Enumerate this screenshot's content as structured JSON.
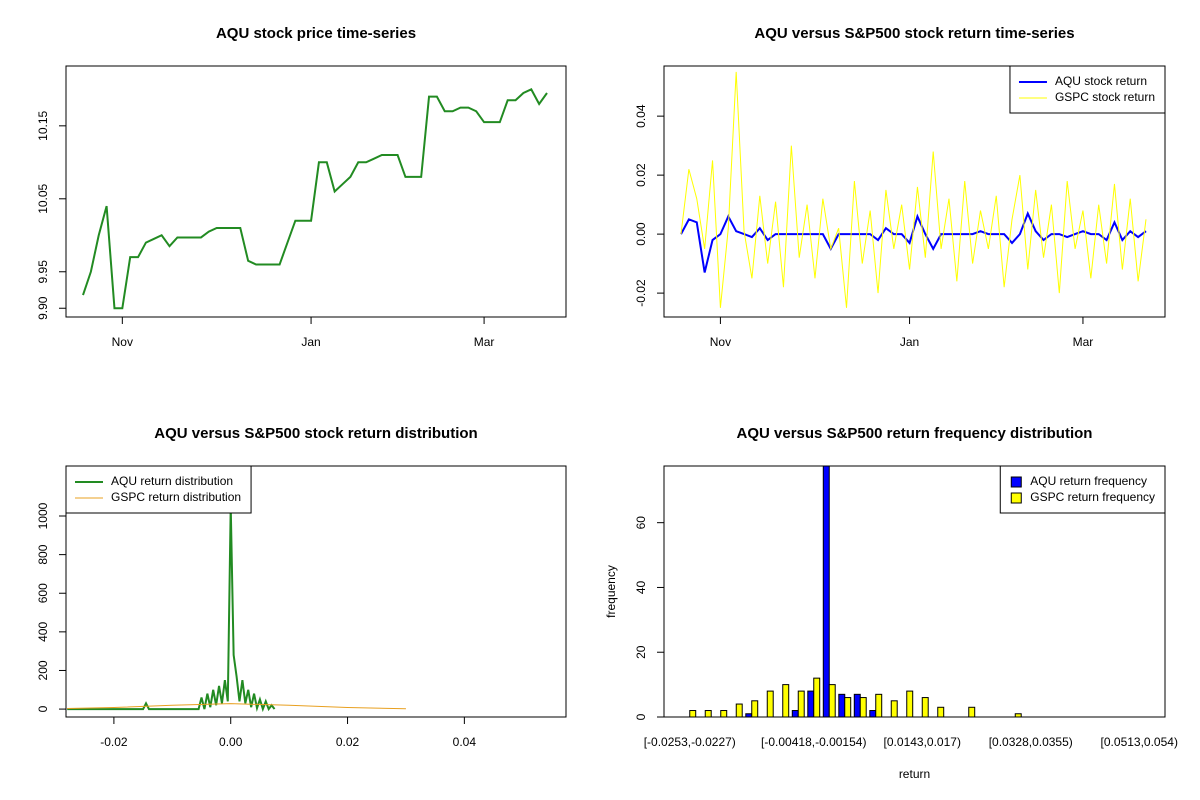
{
  "chart_data": [
    {
      "type": "line",
      "title": "AQU stock price time-series",
      "categories": [
        null,
        null,
        null,
        null,
        null,
        "Nov",
        null,
        null,
        null,
        null,
        null,
        null,
        null,
        null,
        null,
        null,
        null,
        null,
        null,
        null,
        null,
        null,
        null,
        null,
        null,
        null,
        null,
        null,
        null,
        "Jan",
        null,
        null,
        null,
        null,
        null,
        null,
        null,
        null,
        null,
        null,
        null,
        null,
        null,
        null,
        null,
        null,
        null,
        null,
        null,
        null,
        null,
        "Mar",
        null,
        null,
        null,
        null,
        null,
        null,
        null,
        null
      ],
      "values": [
        9.918,
        9.95,
        10.0,
        10.04,
        9.9,
        9.9,
        9.97,
        9.97,
        9.99,
        9.995,
        10.0,
        9.985,
        9.997,
        9.997,
        9.997,
        9.997,
        10.005,
        10.01,
        10.01,
        10.01,
        10.01,
        9.965,
        9.96,
        9.96,
        9.96,
        9.96,
        9.99,
        10.02,
        10.02,
        10.02,
        10.1,
        10.1,
        10.06,
        10.07,
        10.08,
        10.1,
        10.1,
        10.105,
        10.11,
        10.11,
        10.11,
        10.08,
        10.08,
        10.08,
        10.19,
        10.19,
        10.17,
        10.17,
        10.175,
        10.175,
        10.17,
        10.155,
        10.155,
        10.155,
        10.185,
        10.185,
        10.195,
        10.2,
        10.18,
        10.195
      ],
      "color": "#228b22",
      "ylim": [
        9.888,
        10.232
      ],
      "yticks": [
        {
          "value": 9.9,
          "label": "9.90"
        },
        9.95,
        10.05,
        10.15
      ]
    },
    {
      "type": "line",
      "title": "AQU versus S&P500 stock return time-series",
      "categories": [
        null,
        null,
        null,
        null,
        null,
        "Nov",
        null,
        null,
        null,
        null,
        null,
        null,
        null,
        null,
        null,
        null,
        null,
        null,
        null,
        null,
        null,
        null,
        null,
        null,
        null,
        null,
        null,
        null,
        null,
        "Jan",
        null,
        null,
        null,
        null,
        null,
        null,
        null,
        null,
        null,
        null,
        null,
        null,
        null,
        null,
        null,
        null,
        null,
        null,
        null,
        null,
        null,
        "Mar",
        null,
        null,
        null,
        null,
        null,
        null,
        null,
        null
      ],
      "series": [
        {
          "name": "AQU stock return",
          "color": "#0000ff",
          "values": [
            0,
            0.005,
            0.004,
            -0.013,
            -0.002,
            0,
            0.006,
            0.001,
            0,
            -0.001,
            0.002,
            -0.002,
            0,
            0,
            0,
            0,
            0,
            0,
            0,
            -0.005,
            0,
            0,
            0,
            0,
            0,
            -0.002,
            0.002,
            0,
            0,
            -0.003,
            0.006,
            0,
            -0.005,
            0,
            0,
            0,
            0,
            0,
            0.001,
            0,
            0,
            0,
            -0.003,
            0,
            0.007,
            0.001,
            -0.002,
            0,
            0,
            -0.001,
            0,
            0.001,
            0,
            0,
            -0.002,
            0.004,
            -0.002,
            0.001,
            -0.001,
            0.001
          ]
        },
        {
          "name": "GSPC stock return",
          "color": "#ffff00",
          "values": [
            0,
            0.022,
            0.012,
            -0.005,
            0.025,
            -0.025,
            0.002,
            0.055,
            0.001,
            -0.015,
            0.013,
            -0.01,
            0.011,
            -0.018,
            0.03,
            -0.008,
            0.01,
            -0.015,
            0.012,
            -0.005,
            0.002,
            -0.025,
            0.018,
            -0.01,
            0.008,
            -0.02,
            0.015,
            -0.005,
            0.01,
            -0.012,
            0.016,
            -0.008,
            0.028,
            -0.005,
            0.012,
            -0.016,
            0.018,
            -0.01,
            0.008,
            -0.005,
            0.013,
            -0.018,
            0.005,
            0.02,
            -0.012,
            0.015,
            -0.008,
            0.01,
            -0.02,
            0.018,
            -0.005,
            0.008,
            -0.015,
            0.01,
            -0.01,
            0.017,
            -0.012,
            0.012,
            -0.016,
            0.005
          ]
        }
      ],
      "ylim": [
        -0.0281,
        0.057
      ],
      "yticks": [
        -0.02,
        {
          "value": 0,
          "label": "0.00"
        },
        0.02,
        0.04
      ],
      "legend": "topright"
    },
    {
      "type": "line",
      "title": "AQU versus S&P500 stock return distribution",
      "series": [
        {
          "name": "AQU return distribution",
          "color": "#228b22",
          "x": [
            -0.028,
            -0.015,
            -0.0145,
            -0.014,
            -0.0055,
            -0.005,
            -0.0045,
            -0.004,
            -0.0035,
            -0.003,
            -0.0025,
            -0.002,
            -0.0015,
            -0.001,
            -0.0005,
            0,
            0.0005,
            0.001,
            0.0015,
            0.002,
            0.0025,
            0.003,
            0.0035,
            0.004,
            0.0045,
            0.005,
            0.0055,
            0.006,
            0.0065,
            0.007,
            0.0075
          ],
          "values": [
            0,
            0,
            30,
            0,
            0,
            60,
            0,
            80,
            10,
            100,
            20,
            120,
            30,
            150,
            40,
            1050,
            280,
            170,
            40,
            150,
            30,
            100,
            10,
            80,
            5,
            50,
            0,
            40,
            0,
            20,
            0
          ]
        },
        {
          "name": "GSPC return distribution",
          "color": "#e8a020",
          "x": [
            -0.028,
            -0.02,
            -0.01,
            0,
            0.01,
            0.02,
            0.03
          ],
          "values": [
            3,
            8,
            20,
            28,
            20,
            8,
            2
          ]
        }
      ],
      "xlim": [
        -0.0282,
        0.0574
      ],
      "xticks": [
        -0.02,
        {
          "value": 0,
          "label": "0.00"
        },
        0.02,
        0.04
      ],
      "ylim": [
        -41,
        1259
      ],
      "yticks": [
        0,
        200,
        400,
        600,
        800,
        1000
      ],
      "legend": "topleft"
    },
    {
      "type": "bar",
      "title": "AQU versus S&P500 return frequency distribution",
      "xlabel": "return",
      "ylabel": "frequency",
      "categories": [
        "[-0.0253,-0.0227)",
        null,
        null,
        null,
        null,
        null,
        null,
        null,
        "[-0.00418,-0.00154)",
        null,
        null,
        null,
        null,
        null,
        null,
        "[0.0143,0.017)",
        null,
        null,
        null,
        null,
        null,
        null,
        "[0.0328,0.0355)",
        null,
        null,
        null,
        null,
        null,
        null,
        "[0.0513,0.054)"
      ],
      "series": [
        {
          "name": "AQU return frequency",
          "color": "#0000ff",
          "values": [
            0,
            0,
            0,
            0,
            1,
            0,
            0,
            2,
            8,
            82,
            7,
            7,
            2,
            0,
            0,
            0,
            0,
            0,
            0,
            0,
            0,
            0,
            0,
            0,
            0,
            0,
            0,
            0,
            0,
            0
          ]
        },
        {
          "name": "GSPC return frequency",
          "color": "#ffff00",
          "values": [
            2,
            2,
            2,
            4,
            5,
            8,
            10,
            8,
            12,
            10,
            6,
            6,
            7,
            5,
            8,
            6,
            3,
            0,
            3,
            0,
            0,
            1,
            0,
            0,
            0,
            0,
            0,
            0,
            0,
            0
          ]
        }
      ],
      "ylim": [
        0,
        77.5
      ],
      "yticks": [
        0,
        20,
        40,
        60
      ],
      "legend": "topright"
    }
  ]
}
